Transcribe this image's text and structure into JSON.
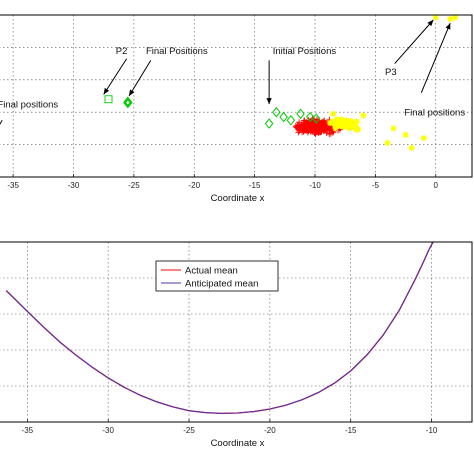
{
  "chart_data": [
    {
      "type": "scatter",
      "xlabel": "Coordinate x",
      "ylabel": "",
      "xlim": [
        -36.5,
        3
      ],
      "ylim": [
        0,
        10
      ],
      "xticks": [
        -35,
        -30,
        -25,
        -20,
        -15,
        -10,
        -5,
        0
      ],
      "grid": true,
      "colors": {
        "red": "#ff0000",
        "yellow": "#ffff00",
        "green": "#00cc00",
        "black": "#000000"
      },
      "series": [
        {
          "color": "#ff0000",
          "marker": "plus",
          "cluster": {
            "center": [
              -10,
              3.1
            ],
            "spread": [
              2.3,
              0.55
            ],
            "count": 340
          }
        },
        {
          "color": "#ffff00",
          "marker": "star",
          "cluster": {
            "center": [
              -7.5,
              3.3
            ],
            "spread": [
              1.8,
              0.5
            ],
            "count": 45
          },
          "points": [
            [
              -3.5,
              3.0
            ],
            [
              -2.5,
              2.6
            ],
            [
              -2.0,
              1.8
            ],
            [
              -1.0,
              2.4
            ],
            [
              -4.0,
              2.1
            ],
            [
              -6.0,
              3.8
            ],
            [
              -8.5,
              3.9
            ]
          ]
        },
        {
          "color": "#00cc00",
          "marker": "diamond",
          "points": [
            [
              -13.2,
              4.0
            ],
            [
              -12.6,
              3.7
            ],
            [
              -12.0,
              3.5
            ],
            [
              -11.2,
              3.9
            ],
            [
              -10.4,
              3.7
            ],
            [
              -9.9,
              3.6
            ],
            [
              -13.8,
              3.3
            ]
          ]
        },
        {
          "color": "#00cc00",
          "marker": "diamond-bold",
          "points": [
            [
              -25.5,
              4.6
            ]
          ]
        },
        {
          "color": "#00cc00",
          "marker": "square",
          "points": [
            [
              -27.1,
              4.8
            ]
          ]
        },
        {
          "color": "#ffff00",
          "marker": "star",
          "points": [
            [
              0.0,
              9.85
            ],
            [
              1.2,
              9.75
            ],
            [
              1.6,
              9.85
            ]
          ]
        }
      ],
      "annotations": [
        {
          "text": "P2",
          "text_at": [
            -26.5,
            7.6
          ],
          "arrow_from": [
            -25.6,
            7.3
          ],
          "arrow_to": [
            -27.5,
            5.1
          ]
        },
        {
          "text": "Final Positions",
          "text_at": [
            -24.0,
            7.6
          ],
          "arrow_from": [
            -23.6,
            7.2
          ],
          "arrow_to": [
            -25.4,
            5.0
          ]
        },
        {
          "text": "Initial Positions",
          "text_at": [
            -13.5,
            7.6
          ],
          "arrow_from": [
            -13.8,
            7.2
          ],
          "arrow_to": [
            -13.8,
            4.5
          ]
        },
        {
          "text": "P3",
          "text_at": [
            -4.2,
            6.3
          ],
          "arrow_from": [
            -3.4,
            7.0
          ],
          "arrow_to": [
            -0.2,
            9.7
          ]
        },
        {
          "text": "Final positions",
          "text_at": [
            -2.6,
            3.8
          ],
          "arrow_from": [
            -1.2,
            5.2
          ],
          "arrow_to": [
            1.2,
            9.5
          ]
        },
        {
          "text": "Final positions",
          "text_at": [
            -36.3,
            4.3
          ],
          "arrow_from": [
            -35.9,
            3.5
          ],
          "arrow_to": [
            -36.7,
            2.5
          ]
        }
      ]
    },
    {
      "type": "line",
      "xlabel": "Coordinate x",
      "ylabel": "",
      "xlim": [
        -37,
        -7.5
      ],
      "ylim": [
        0,
        10
      ],
      "xticks": [
        -35,
        -30,
        -25,
        -20,
        -15,
        -10
      ],
      "grid": true,
      "legend": "top-center",
      "series": [
        {
          "name": "Actual mean",
          "color": "#ff0000",
          "x": [
            -36.3,
            -35,
            -34,
            -33,
            -32,
            -31,
            -30,
            -29,
            -28,
            -27,
            -26,
            -25,
            -24,
            -23,
            -22,
            -21,
            -20,
            -19,
            -18,
            -17,
            -16,
            -15,
            -14,
            -13,
            -12,
            -11,
            -10.5,
            -10.2,
            -10.0,
            -9.9
          ],
          "y": [
            7.3,
            6.15,
            5.28,
            4.45,
            3.72,
            3.05,
            2.45,
            1.92,
            1.48,
            1.12,
            0.84,
            0.63,
            0.52,
            0.48,
            0.5,
            0.58,
            0.72,
            0.94,
            1.24,
            1.64,
            2.16,
            2.84,
            3.72,
            4.82,
            6.2,
            7.95,
            8.9,
            9.5,
            9.85,
            10.0
          ]
        },
        {
          "name": "Anticipated mean",
          "color": "#5533aa",
          "x": [
            -36.3,
            -35,
            -34,
            -33,
            -32,
            -31,
            -30,
            -29,
            -28,
            -27,
            -26,
            -25,
            -24,
            -23,
            -22,
            -21,
            -20,
            -19,
            -18,
            -17,
            -16,
            -15,
            -14,
            -13,
            -12,
            -11,
            -10.5,
            -10.2,
            -10.0,
            -9.9
          ],
          "y": [
            7.3,
            6.15,
            5.28,
            4.45,
            3.72,
            3.05,
            2.45,
            1.92,
            1.48,
            1.12,
            0.84,
            0.63,
            0.52,
            0.48,
            0.5,
            0.58,
            0.72,
            0.94,
            1.24,
            1.64,
            2.16,
            2.84,
            3.72,
            4.82,
            6.2,
            7.95,
            8.9,
            9.5,
            9.85,
            10.0
          ]
        }
      ]
    }
  ]
}
